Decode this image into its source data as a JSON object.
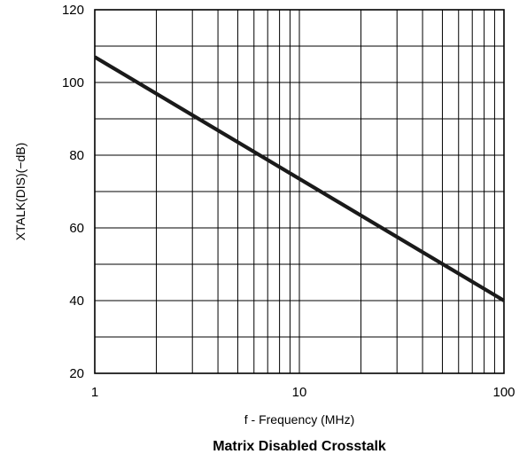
{
  "chart_data": {
    "type": "line",
    "title": "Matrix Disabled Crosstalk",
    "xlabel": "f -  Frequency (MHz)",
    "ylabel": "XTALK(DIS)(−dB)",
    "x_scale": "log",
    "xlim": [
      1,
      100
    ],
    "ylim": [
      20,
      120
    ],
    "x_tick_labels": [
      "1",
      "10",
      "100"
    ],
    "y_tick_labels": [
      "20",
      "40",
      "60",
      "80",
      "100",
      "120"
    ],
    "grid": true,
    "series": [
      {
        "x": [
          1,
          100
        ],
        "y": [
          107,
          40
        ]
      }
    ],
    "colors": {
      "line": "#1a1a1a",
      "grid": "#000000"
    }
  }
}
